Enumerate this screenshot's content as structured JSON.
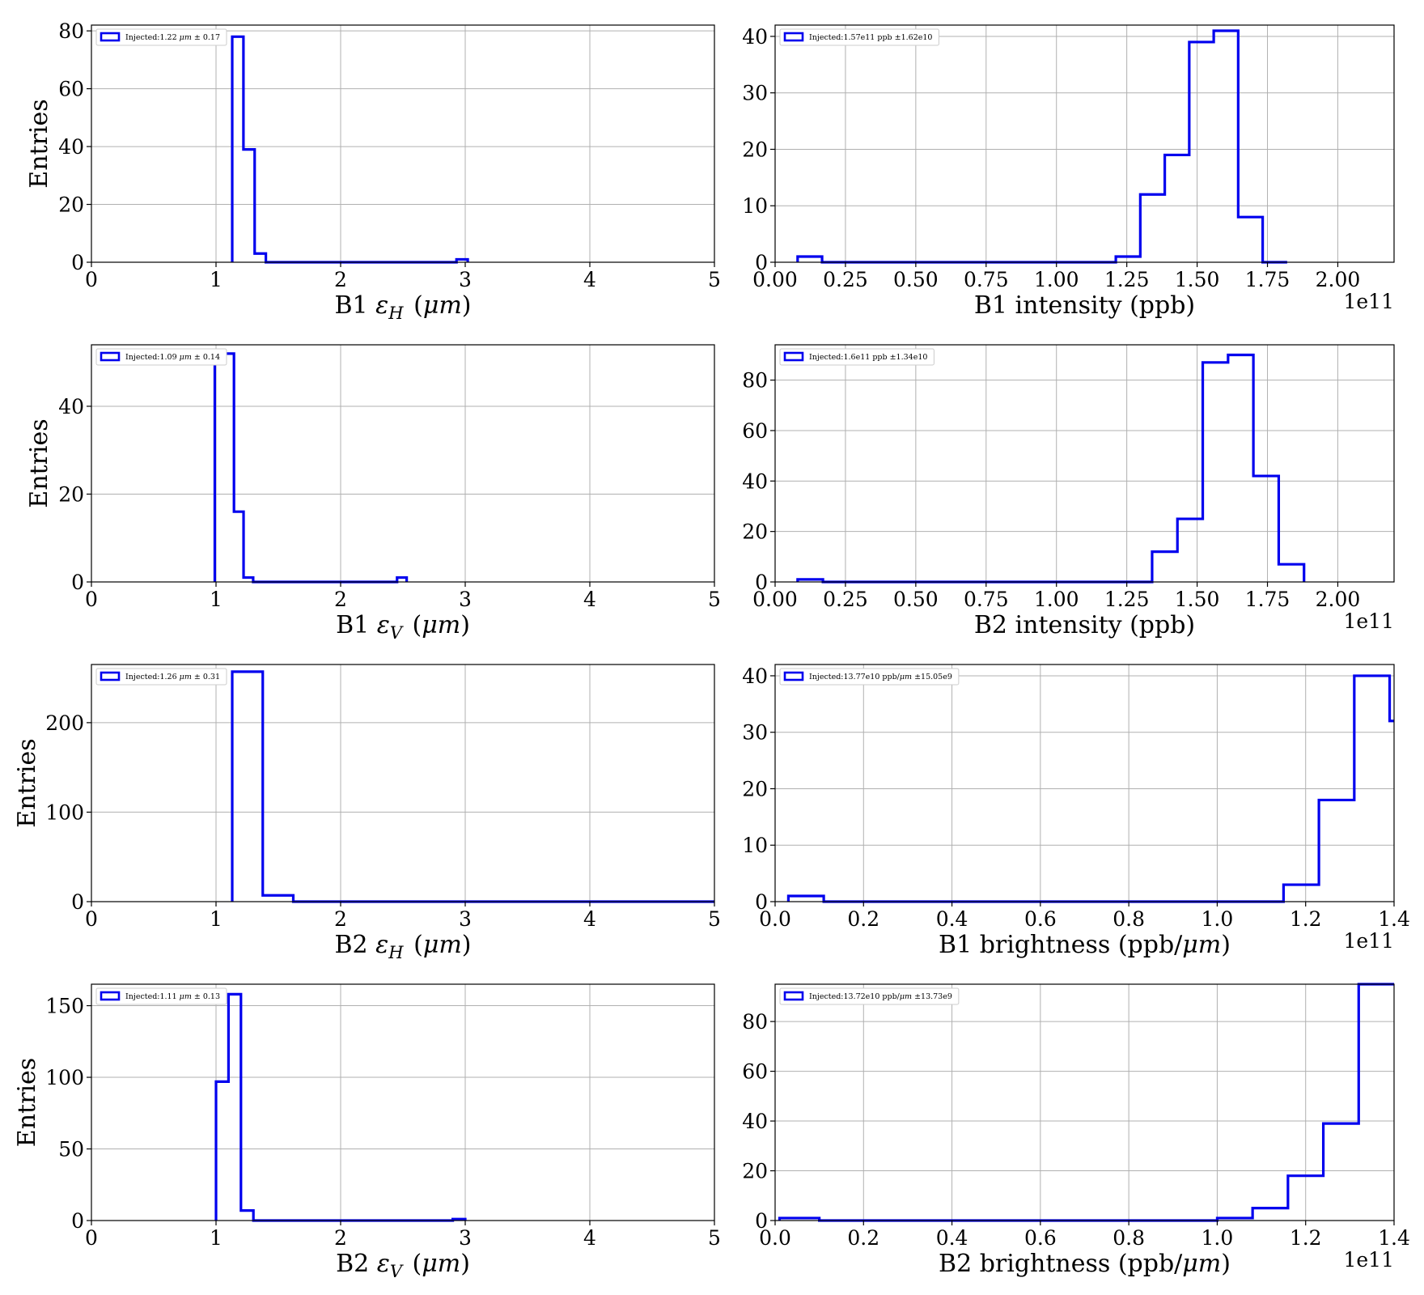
{
  "chart_data": [
    {
      "type": "bar",
      "histogram": true,
      "title": "",
      "xlabel": "B1 εH (μm)",
      "ylabel": "Entries",
      "xlim": [
        0,
        5
      ],
      "ylim": [
        0,
        82
      ],
      "xticks": [
        0,
        1,
        2,
        3,
        4,
        5
      ],
      "xtick_labels": [
        "0",
        "1",
        "2",
        "3",
        "4",
        "5"
      ],
      "yticks": [
        0,
        20,
        40,
        60,
        80
      ],
      "ytick_labels": [
        "0",
        "20",
        "40",
        "60",
        "80"
      ],
      "offset_text": "",
      "grid": true,
      "legend_position": "top-left",
      "legend": [
        "Injected:1.22 μm ± 0.17"
      ],
      "color": "#0000ee",
      "bin_edges": [
        1.13,
        1.22,
        1.31,
        1.4,
        1.49,
        1.58,
        1.67,
        1.76,
        1.85,
        1.94,
        2.03,
        2.12,
        2.21,
        2.3,
        2.39,
        2.48,
        2.57,
        2.66,
        2.75,
        2.84,
        2.93,
        3.02
      ],
      "counts": [
        78,
        39,
        3,
        0,
        0,
        0,
        0,
        0,
        0,
        0,
        0,
        0,
        0,
        0,
        0,
        0,
        0,
        0,
        0,
        0,
        1
      ]
    },
    {
      "type": "bar",
      "histogram": true,
      "title": "",
      "xlabel": "B1 intensity (ppb)",
      "ylabel": "",
      "xlim": [
        0,
        2.2
      ],
      "ylim": [
        0,
        42
      ],
      "xticks": [
        0,
        0.25,
        0.5,
        0.75,
        1.0,
        1.25,
        1.5,
        1.75,
        2.0
      ],
      "xtick_labels": [
        "0.00",
        "0.25",
        "0.50",
        "0.75",
        "1.00",
        "1.25",
        "1.50",
        "1.75",
        "2.00"
      ],
      "yticks": [
        0,
        10,
        20,
        30,
        40
      ],
      "ytick_labels": [
        "0",
        "10",
        "20",
        "30",
        "40"
      ],
      "offset_text": "1e11",
      "grid": true,
      "legend_position": "top-left",
      "legend": [
        "Injected:1.57e11 ppb ±1.62e10"
      ],
      "color": "#0000ee",
      "bin_edges": [
        0.08,
        0.167,
        0.254,
        0.341,
        0.428,
        0.515,
        0.602,
        0.689,
        0.776,
        0.863,
        0.95,
        1.037,
        1.124,
        1.211,
        1.298,
        1.385,
        1.472,
        1.559,
        1.646,
        1.733,
        1.82
      ],
      "counts": [
        1,
        0,
        0,
        0,
        0,
        0,
        0,
        0,
        0,
        0,
        0,
        0,
        0,
        1,
        12,
        19,
        39,
        41,
        8,
        0
      ]
    },
    {
      "type": "bar",
      "histogram": true,
      "title": "",
      "xlabel": "B1 εV (μm)",
      "ylabel": "Entries",
      "xlim": [
        0,
        5
      ],
      "ylim": [
        0,
        54
      ],
      "xticks": [
        0,
        1,
        2,
        3,
        4,
        5
      ],
      "xtick_labels": [
        "0",
        "1",
        "2",
        "3",
        "4",
        "5"
      ],
      "yticks": [
        0,
        20,
        40
      ],
      "ytick_labels": [
        "0",
        "20",
        "40"
      ],
      "offset_text": "",
      "grid": true,
      "legend_position": "top-left",
      "legend": [
        "Injected:1.09 μm ± 0.14"
      ],
      "color": "#0000ee",
      "bin_edges": [
        0.99,
        1.067,
        1.144,
        1.221,
        1.298,
        1.375,
        1.452,
        1.529,
        1.606,
        1.683,
        1.76,
        1.837,
        1.914,
        1.991,
        2.068,
        2.145,
        2.222,
        2.299,
        2.376,
        2.453,
        2.53
      ],
      "counts": [
        51,
        52,
        16,
        1,
        0,
        0,
        0,
        0,
        0,
        0,
        0,
        0,
        0,
        0,
        0,
        0,
        0,
        0,
        0,
        1
      ]
    },
    {
      "type": "bar",
      "histogram": true,
      "title": "",
      "xlabel": "B2 intensity (ppb)",
      "ylabel": "",
      "xlim": [
        0,
        2.2
      ],
      "ylim": [
        0,
        94
      ],
      "xticks": [
        0,
        0.25,
        0.5,
        0.75,
        1.0,
        1.25,
        1.5,
        1.75,
        2.0
      ],
      "xtick_labels": [
        "0.00",
        "0.25",
        "0.50",
        "0.75",
        "1.00",
        "1.25",
        "1.50",
        "1.75",
        "2.00"
      ],
      "yticks": [
        0,
        20,
        40,
        60,
        80
      ],
      "ytick_labels": [
        "0",
        "20",
        "40",
        "60",
        "80"
      ],
      "offset_text": "1e11",
      "grid": true,
      "legend_position": "top-left",
      "legend": [
        "Injected:1.6e11 ppb ±1.34e10"
      ],
      "color": "#0000ee",
      "bin_edges": [
        0.08,
        0.17,
        0.26,
        0.35,
        0.44,
        0.53,
        0.62,
        0.71,
        0.8,
        0.89,
        0.98,
        1.07,
        1.16,
        1.25,
        1.34,
        1.43,
        1.52,
        1.61,
        1.7,
        1.79,
        1.88
      ],
      "counts": [
        1,
        0,
        0,
        0,
        0,
        0,
        0,
        0,
        0,
        0,
        0,
        0,
        0,
        0,
        12,
        25,
        87,
        90,
        42,
        7
      ]
    },
    {
      "type": "bar",
      "histogram": true,
      "title": "",
      "xlabel": "B2 εH (μm)",
      "ylabel": "Entries",
      "xlim": [
        0,
        5
      ],
      "ylim": [
        0,
        265
      ],
      "xticks": [
        0,
        1,
        2,
        3,
        4,
        5
      ],
      "xtick_labels": [
        "0",
        "1",
        "2",
        "3",
        "4",
        "5"
      ],
      "yticks": [
        0,
        100,
        200
      ],
      "ytick_labels": [
        "0",
        "100",
        "200"
      ],
      "offset_text": "",
      "grid": true,
      "legend_position": "top-left",
      "legend": [
        "Injected:1.26 μm ± 0.31"
      ],
      "color": "#0000ee",
      "bin_edges": [
        1.13,
        1.375,
        1.62,
        1.865,
        2.11,
        2.355,
        2.6,
        2.845,
        3.09,
        3.335,
        3.58,
        3.825,
        4.07,
        4.315,
        4.56,
        4.805,
        5.05
      ],
      "counts": [
        257,
        7,
        0,
        0,
        0,
        0,
        0,
        0,
        0,
        0,
        0,
        0,
        0,
        0,
        0,
        0
      ]
    },
    {
      "type": "bar",
      "histogram": true,
      "title": "",
      "xlabel": "B1 brightness (ppb/μm)",
      "ylabel": "",
      "xlim": [
        0,
        1.4
      ],
      "ylim": [
        0,
        42
      ],
      "xticks": [
        0,
        0.2,
        0.4,
        0.6,
        0.8,
        1.0,
        1.2,
        1.4
      ],
      "xtick_labels": [
        "0.0",
        "0.2",
        "0.4",
        "0.6",
        "0.8",
        "1.0",
        "1.2",
        "1.4"
      ],
      "yticks": [
        0,
        10,
        20,
        30,
        40
      ],
      "ytick_labels": [
        "0",
        "10",
        "20",
        "30",
        "40"
      ],
      "offset_text": "1e11",
      "grid": true,
      "legend_position": "top-left",
      "legend": [
        "Injected:13.77e10 ppb/μm ±15.05e9"
      ],
      "color": "#0000ee",
      "bin_edges": [
        0.03,
        0.11,
        0.19,
        0.27,
        0.35,
        0.43,
        0.51,
        0.59,
        0.67,
        0.75,
        0.83,
        0.91,
        0.99,
        1.07,
        1.15,
        1.23,
        1.31,
        1.39,
        1.47
      ],
      "counts": [
        1,
        0,
        0,
        0,
        0,
        0,
        0,
        0,
        0,
        0,
        0,
        0,
        0,
        0,
        3,
        18,
        40,
        32
      ]
    },
    {
      "type": "bar",
      "histogram": true,
      "title": "",
      "xlabel": "B2 εV (μm)",
      "ylabel": "Entries",
      "xlim": [
        0,
        5
      ],
      "ylim": [
        0,
        165
      ],
      "xticks": [
        0,
        1,
        2,
        3,
        4,
        5
      ],
      "xtick_labels": [
        "0",
        "1",
        "2",
        "3",
        "4",
        "5"
      ],
      "yticks": [
        0,
        50,
        100,
        150
      ],
      "ytick_labels": [
        "0",
        "50",
        "100",
        "150"
      ],
      "offset_text": "",
      "grid": true,
      "legend_position": "top-left",
      "legend": [
        "Injected:1.11 μm ± 0.13"
      ],
      "color": "#0000ee",
      "bin_edges": [
        1.0,
        1.1,
        1.2,
        1.3,
        1.4,
        1.5,
        1.6,
        1.7,
        1.8,
        1.9,
        2.0,
        2.1,
        2.2,
        2.3,
        2.4,
        2.5,
        2.6,
        2.7,
        2.8,
        2.9,
        3.0
      ],
      "counts": [
        97,
        158,
        7,
        0,
        0,
        0,
        0,
        0,
        0,
        0,
        0,
        0,
        0,
        0,
        0,
        0,
        0,
        0,
        0,
        1
      ]
    },
    {
      "type": "bar",
      "histogram": true,
      "title": "",
      "xlabel": "B2 brightness (ppb/μm)",
      "ylabel": "",
      "xlim": [
        0,
        1.4
      ],
      "ylim": [
        0,
        95
      ],
      "xticks": [
        0,
        0.2,
        0.4,
        0.6,
        0.8,
        1.0,
        1.2,
        1.4
      ],
      "xtick_labels": [
        "0.0",
        "0.2",
        "0.4",
        "0.6",
        "0.8",
        "1.0",
        "1.2",
        "1.4"
      ],
      "yticks": [
        0,
        20,
        40,
        60,
        80
      ],
      "ytick_labels": [
        "0",
        "20",
        "40",
        "60",
        "80"
      ],
      "offset_text": "1e11",
      "grid": true,
      "legend_position": "top-left",
      "legend": [
        "Injected:13.72e10 ppb/μm ±13.73e9"
      ],
      "color": "#0000ee",
      "bin_edges": [
        0.01,
        0.1,
        0.19,
        0.28,
        0.37,
        0.46,
        0.55,
        0.64,
        0.73,
        0.82,
        0.91,
        1.0,
        1.08,
        1.16,
        1.24,
        1.32,
        1.41
      ],
      "counts": [
        1,
        0,
        0,
        0,
        0,
        0,
        0,
        0,
        0,
        0,
        0,
        1,
        5,
        18,
        39,
        95
      ]
    }
  ]
}
